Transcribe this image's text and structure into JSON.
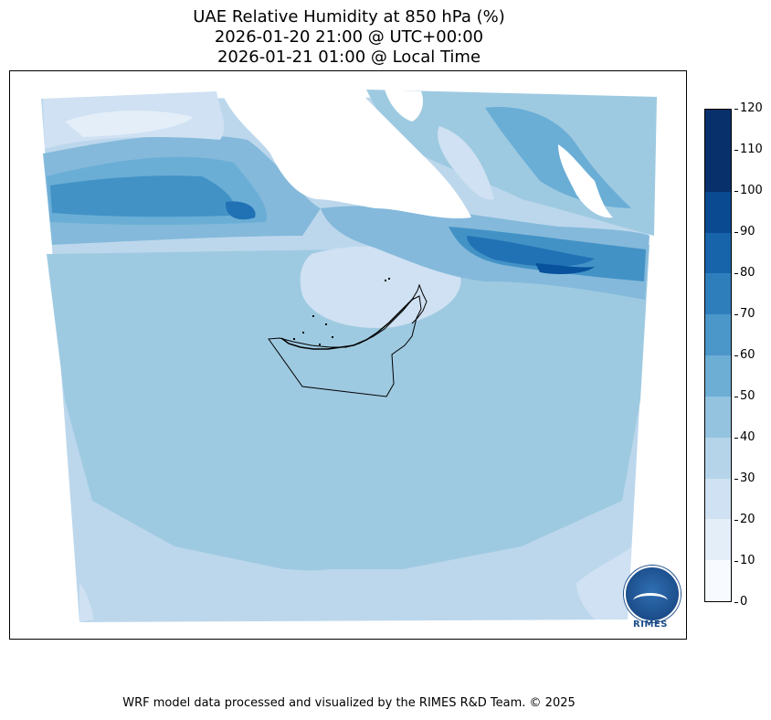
{
  "header": {
    "title_line1": "UAE Relative Humidity at 850 hPa (%)",
    "title_line2": "2026-01-20 21:00 @ UTC+00:00",
    "title_line3": "2026-01-21 01:00 @ Local Time"
  },
  "colorbar": {
    "ticks": [
      "0",
      "10",
      "20",
      "30",
      "40",
      "50",
      "60",
      "70",
      "80",
      "90",
      "100",
      "110",
      "120"
    ],
    "colors": [
      "#f7fbff",
      "#e3eef9",
      "#cfe1f2",
      "#b5d4e9",
      "#93c3df",
      "#6daed5",
      "#4b97c9",
      "#2f7ebc",
      "#1864aa",
      "#0a4a90",
      "#08306b",
      "#08306b"
    ]
  },
  "map": {
    "shading_colors": {
      "lightest": "#e3eef9",
      "light": "#cfe1f2",
      "low": "#bcd7ec",
      "mid": "#9ecae1",
      "mid2": "#84b9db",
      "high": "#6aaed6",
      "higher": "#4292c6",
      "highest": "#2171b5",
      "max": "#08519c"
    }
  },
  "logo": {
    "text": "RIMES"
  },
  "footer": {
    "credit": "WRF model data processed and visualized by the RIMES R&D Team. © 2025"
  }
}
